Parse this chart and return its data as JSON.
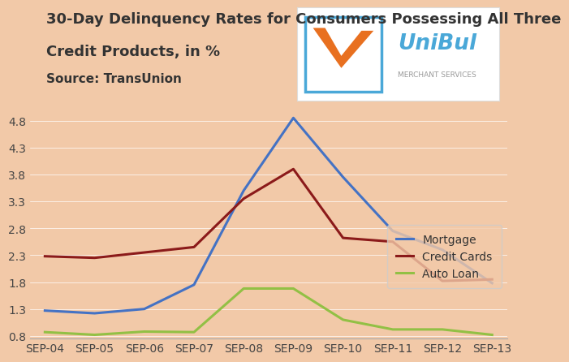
{
  "title_line1": "30-Day Delinquency Rates for Consumers Possessing All Three",
  "title_line2": "Credit Products, in %",
  "source": "Source: TransUnion",
  "background_color": "#F2C9A8",
  "x_labels": [
    "SEP-04",
    "SEP-05",
    "SEP-06",
    "SEP-07",
    "SEP-08",
    "SEP-09",
    "SEP-10",
    "SEP-11",
    "SEP-12",
    "SEP-13"
  ],
  "mortgage": [
    1.27,
    1.22,
    1.3,
    1.75,
    3.5,
    4.85,
    3.75,
    2.75,
    2.4,
    1.78
  ],
  "credit_cards": [
    2.28,
    2.25,
    2.35,
    2.45,
    3.35,
    3.9,
    2.62,
    2.55,
    1.82,
    1.85
  ],
  "auto_loan": [
    0.87,
    0.82,
    0.88,
    0.87,
    1.68,
    1.68,
    1.1,
    0.92,
    0.92,
    0.82
  ],
  "mortgage_color": "#4472C4",
  "credit_cards_color": "#8B1A1A",
  "auto_loan_color": "#92C045",
  "yticks": [
    0.8,
    1.3,
    1.8,
    2.3,
    2.8,
    3.3,
    3.8,
    4.3,
    4.8
  ],
  "ylim": [
    0.75,
    5.1
  ],
  "title_fontsize": 13,
  "source_fontsize": 11,
  "tick_fontsize": 10,
  "legend_fontsize": 10,
  "line_width": 2.2,
  "logo_box_color": "white",
  "logo_border_color": "#4AA8D8",
  "logo_text_color": "#4AA8D8",
  "logo_subtext_color": "#999999",
  "logo_orange_color": "#E87020"
}
